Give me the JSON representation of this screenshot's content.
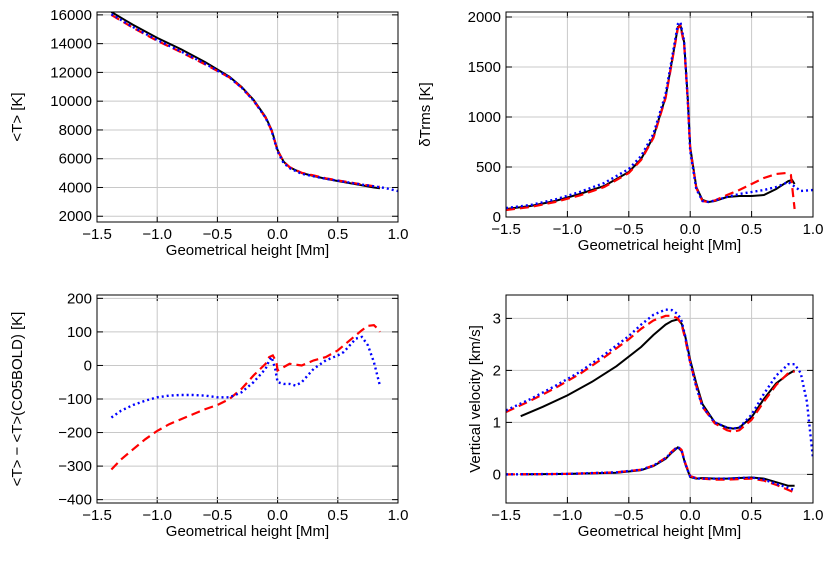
{
  "chart_data": [
    {
      "id": "p1",
      "type": "line",
      "xlabel": "Geometrical height [Mm]",
      "ylabel": "<T> [K]",
      "xlim": [
        -1.5,
        1.0
      ],
      "ylim": [
        1600,
        16200
      ],
      "xticks": [
        -1.5,
        -1.0,
        -0.5,
        0.0,
        0.5,
        1.0
      ],
      "xtick_labels": [
        "−1.5",
        "−1.0",
        "−0.5",
        "0.0",
        "0.5",
        "1.0"
      ],
      "yticks": [
        2000,
        4000,
        6000,
        8000,
        10000,
        12000,
        14000,
        16000
      ],
      "ytick_labels": [
        "2000",
        "4000",
        "6000",
        "8000",
        "10000",
        "12000",
        "14000",
        "16000"
      ],
      "series": [
        {
          "name": "black",
          "color": "#000000",
          "x": [
            -1.38,
            -1.2,
            -1.0,
            -0.8,
            -0.6,
            -0.4,
            -0.3,
            -0.2,
            -0.1,
            -0.05,
            0.0,
            0.05,
            0.1,
            0.2,
            0.3,
            0.4,
            0.5,
            0.6,
            0.7,
            0.8,
            0.85
          ],
          "y": [
            16200,
            15300,
            14400,
            13600,
            12700,
            11700,
            11000,
            10100,
            8900,
            8000,
            6600,
            5800,
            5400,
            5000,
            4800,
            4600,
            4450,
            4300,
            4150,
            4000,
            3950
          ]
        },
        {
          "name": "red",
          "color": "#ff0000",
          "x": [
            -1.38,
            -1.2,
            -1.0,
            -0.8,
            -0.6,
            -0.4,
            -0.3,
            -0.2,
            -0.1,
            -0.05,
            0.0,
            0.05,
            0.1,
            0.2,
            0.3,
            0.4,
            0.5,
            0.6,
            0.7,
            0.8,
            0.85
          ],
          "y": [
            16000,
            15100,
            14200,
            13400,
            12550,
            11650,
            10950,
            10050,
            8850,
            7950,
            6550,
            5800,
            5420,
            5020,
            4830,
            4640,
            4490,
            4350,
            4210,
            4090,
            4050
          ]
        },
        {
          "name": "blue",
          "color": "#0000ff",
          "x": [
            -1.38,
            -1.2,
            -1.0,
            -0.8,
            -0.6,
            -0.4,
            -0.3,
            -0.2,
            -0.1,
            -0.05,
            0.0,
            0.05,
            0.1,
            0.2,
            0.3,
            0.4,
            0.5,
            0.6,
            0.7,
            0.8,
            0.9,
            1.0
          ],
          "y": [
            16050,
            15150,
            14250,
            13450,
            12600,
            11650,
            10950,
            10050,
            8850,
            7950,
            6500,
            5700,
            5350,
            4950,
            4780,
            4600,
            4470,
            4330,
            4200,
            4080,
            3950,
            3750
          ]
        }
      ]
    },
    {
      "id": "p2",
      "type": "line",
      "xlabel": "Geometrical height [Mm]",
      "ylabel": "δTrms [K]",
      "xlim": [
        -1.5,
        1.0
      ],
      "ylim": [
        0,
        2050
      ],
      "xticks": [
        -1.5,
        -1.0,
        -0.5,
        0.0,
        0.5,
        1.0
      ],
      "xtick_labels": [
        "−1.5",
        "−1.0",
        "−0.5",
        "0.0",
        "0.5",
        "1.0"
      ],
      "yticks": [
        0,
        500,
        1000,
        1500,
        2000
      ],
      "ytick_labels": [
        "0",
        "500",
        "1000",
        "1500",
        "2000"
      ],
      "series": [
        {
          "name": "black",
          "color": "#000000",
          "x": [
            -1.5,
            -1.3,
            -1.1,
            -0.9,
            -0.7,
            -0.5,
            -0.4,
            -0.3,
            -0.2,
            -0.15,
            -0.1,
            -0.08,
            -0.05,
            -0.02,
            0.0,
            0.05,
            0.1,
            0.15,
            0.2,
            0.3,
            0.4,
            0.5,
            0.6,
            0.7,
            0.8,
            0.83,
            0.85
          ],
          "y": [
            80,
            110,
            160,
            230,
            310,
            450,
            580,
            800,
            1200,
            1550,
            1900,
            1920,
            1750,
            1200,
            700,
            300,
            170,
            150,
            160,
            200,
            210,
            210,
            220,
            280,
            360,
            370,
            330
          ]
        },
        {
          "name": "red",
          "color": "#ff0000",
          "x": [
            -1.5,
            -1.3,
            -1.1,
            -0.9,
            -0.7,
            -0.5,
            -0.4,
            -0.3,
            -0.2,
            -0.15,
            -0.1,
            -0.08,
            -0.05,
            -0.02,
            0.0,
            0.05,
            0.1,
            0.15,
            0.2,
            0.3,
            0.4,
            0.5,
            0.6,
            0.7,
            0.78,
            0.82,
            0.85
          ],
          "y": [
            70,
            100,
            150,
            215,
            300,
            440,
            570,
            790,
            1190,
            1540,
            1890,
            1910,
            1730,
            1180,
            680,
            290,
            160,
            150,
            165,
            220,
            270,
            330,
            390,
            430,
            440,
            420,
            80
          ]
        },
        {
          "name": "blue",
          "color": "#0000ff",
          "x": [
            -1.5,
            -1.3,
            -1.1,
            -0.9,
            -0.7,
            -0.5,
            -0.4,
            -0.3,
            -0.2,
            -0.15,
            -0.1,
            -0.08,
            -0.05,
            -0.02,
            0.0,
            0.05,
            0.1,
            0.15,
            0.2,
            0.3,
            0.4,
            0.5,
            0.6,
            0.7,
            0.8,
            0.9,
            1.0
          ],
          "y": [
            90,
            120,
            175,
            250,
            340,
            480,
            610,
            830,
            1230,
            1580,
            1930,
            1950,
            1760,
            1180,
            660,
            280,
            160,
            150,
            165,
            200,
            230,
            250,
            270,
            300,
            350,
            260,
            270
          ]
        }
      ]
    },
    {
      "id": "p3",
      "type": "line",
      "xlabel": "Geometrical height [Mm]",
      "ylabel": "<T> − <T>(CO5BOLD) [K]",
      "xlim": [
        -1.5,
        1.0
      ],
      "ylim": [
        -410,
        210
      ],
      "xticks": [
        -1.5,
        -1.0,
        -0.5,
        0.0,
        0.5,
        1.0
      ],
      "xtick_labels": [
        "−1.5",
        "−1.0",
        "−0.5",
        "0.0",
        "0.5",
        "1.0"
      ],
      "yticks": [
        -400,
        -300,
        -200,
        -100,
        0,
        100,
        200
      ],
      "ytick_labels": [
        "−400",
        "−300",
        "−200",
        "−100",
        "0",
        "100",
        "200"
      ],
      "series": [
        {
          "name": "red",
          "color": "#ff0000",
          "x": [
            -1.38,
            -1.3,
            -1.2,
            -1.1,
            -1.0,
            -0.9,
            -0.8,
            -0.7,
            -0.6,
            -0.5,
            -0.4,
            -0.3,
            -0.2,
            -0.1,
            -0.07,
            -0.04,
            -0.01,
            0.0,
            0.1,
            0.2,
            0.3,
            0.4,
            0.5,
            0.6,
            0.7,
            0.75,
            0.8,
            0.83,
            0.85
          ],
          "y": [
            -310,
            -280,
            -250,
            -220,
            -195,
            -175,
            -160,
            -145,
            -130,
            -118,
            -100,
            -70,
            -30,
            5,
            25,
            30,
            10,
            -15,
            5,
            0,
            15,
            25,
            45,
            75,
            105,
            118,
            120,
            110,
            100
          ]
        },
        {
          "name": "blue",
          "color": "#0000ff",
          "x": [
            -1.38,
            -1.3,
            -1.2,
            -1.1,
            -1.0,
            -0.9,
            -0.8,
            -0.7,
            -0.6,
            -0.5,
            -0.4,
            -0.3,
            -0.2,
            -0.1,
            -0.07,
            -0.05,
            -0.02,
            0.0,
            0.05,
            0.1,
            0.15,
            0.2,
            0.3,
            0.4,
            0.5,
            0.55,
            0.6,
            0.65,
            0.7,
            0.75,
            0.8,
            0.85
          ],
          "y": [
            -155,
            -135,
            -118,
            -105,
            -95,
            -90,
            -88,
            -88,
            -90,
            -95,
            -95,
            -80,
            -50,
            -10,
            15,
            25,
            -10,
            -50,
            -55,
            -55,
            -60,
            -50,
            -10,
            15,
            30,
            40,
            60,
            80,
            85,
            60,
            10,
            -60
          ]
        }
      ]
    },
    {
      "id": "p4",
      "type": "line",
      "xlabel": "Geometrical height [Mm]",
      "ylabel": "Vertical velocity [km/s]",
      "xlim": [
        -1.5,
        1.0
      ],
      "ylim": [
        -0.55,
        3.45
      ],
      "xticks": [
        -1.5,
        -1.0,
        -0.5,
        0.0,
        0.5,
        1.0
      ],
      "xtick_labels": [
        "−1.5",
        "−1.0",
        "−0.5",
        "0.0",
        "0.5",
        "1.0"
      ],
      "yticks": [
        0,
        1,
        2,
        3
      ],
      "ytick_labels": [
        "0",
        "1",
        "2",
        "3"
      ],
      "series": [
        {
          "name": "black-upper",
          "color": "#000000",
          "x": [
            -1.38,
            -1.2,
            -1.0,
            -0.8,
            -0.6,
            -0.4,
            -0.3,
            -0.2,
            -0.15,
            -0.1,
            -0.07,
            -0.04,
            0.0,
            0.05,
            0.1,
            0.2,
            0.3,
            0.35,
            0.4,
            0.5,
            0.6,
            0.7,
            0.8,
            0.85
          ],
          "y": [
            1.12,
            1.3,
            1.52,
            1.78,
            2.08,
            2.45,
            2.68,
            2.88,
            2.95,
            2.98,
            2.9,
            2.65,
            2.2,
            1.75,
            1.35,
            1.0,
            0.9,
            0.88,
            0.9,
            1.1,
            1.45,
            1.75,
            1.93,
            2.0
          ]
        },
        {
          "name": "red-upper",
          "color": "#ff0000",
          "x": [
            -1.5,
            -1.3,
            -1.1,
            -0.9,
            -0.7,
            -0.5,
            -0.4,
            -0.3,
            -0.2,
            -0.15,
            -0.1,
            -0.07,
            -0.04,
            0.0,
            0.05,
            0.1,
            0.2,
            0.3,
            0.35,
            0.4,
            0.5,
            0.6,
            0.7,
            0.8,
            0.85
          ],
          "y": [
            1.2,
            1.42,
            1.66,
            1.93,
            2.25,
            2.6,
            2.8,
            2.96,
            3.05,
            3.05,
            3.0,
            2.88,
            2.6,
            2.15,
            1.7,
            1.3,
            0.98,
            0.85,
            0.82,
            0.85,
            1.05,
            1.4,
            1.72,
            1.95,
            1.98
          ]
        },
        {
          "name": "blue-upper",
          "color": "#0000ff",
          "x": [
            -1.5,
            -1.3,
            -1.1,
            -0.9,
            -0.7,
            -0.5,
            -0.4,
            -0.3,
            -0.2,
            -0.15,
            -0.1,
            -0.07,
            -0.04,
            0.0,
            0.05,
            0.1,
            0.2,
            0.3,
            0.35,
            0.4,
            0.5,
            0.6,
            0.7,
            0.8,
            0.85,
            0.9,
            0.95,
            1.0
          ],
          "y": [
            1.23,
            1.45,
            1.7,
            1.97,
            2.3,
            2.66,
            2.88,
            3.07,
            3.17,
            3.16,
            3.08,
            2.95,
            2.65,
            2.15,
            1.68,
            1.3,
            1.0,
            0.9,
            0.88,
            0.9,
            1.15,
            1.55,
            1.9,
            2.12,
            2.12,
            1.95,
            1.4,
            0.3
          ]
        },
        {
          "name": "black-lower",
          "color": "#000000",
          "x": [
            -1.38,
            -1.0,
            -0.6,
            -0.4,
            -0.3,
            -0.2,
            -0.15,
            -0.1,
            -0.07,
            -0.04,
            0.0,
            0.05,
            0.1,
            0.2,
            0.3,
            0.4,
            0.5,
            0.6,
            0.7,
            0.8,
            0.85
          ],
          "y": [
            0.0,
            0.01,
            0.03,
            0.08,
            0.16,
            0.3,
            0.42,
            0.52,
            0.45,
            0.2,
            -0.05,
            -0.08,
            -0.07,
            -0.08,
            -0.08,
            -0.07,
            -0.06,
            -0.08,
            -0.15,
            -0.22,
            -0.22
          ]
        },
        {
          "name": "red-lower",
          "color": "#ff0000",
          "x": [
            -1.5,
            -1.0,
            -0.6,
            -0.4,
            -0.3,
            -0.2,
            -0.15,
            -0.1,
            -0.07,
            -0.04,
            0.0,
            0.05,
            0.1,
            0.2,
            0.3,
            0.4,
            0.5,
            0.6,
            0.7,
            0.8,
            0.85
          ],
          "y": [
            0.0,
            0.01,
            0.04,
            0.09,
            0.17,
            0.32,
            0.44,
            0.54,
            0.47,
            0.22,
            -0.03,
            -0.07,
            -0.08,
            -0.1,
            -0.1,
            -0.09,
            -0.08,
            -0.12,
            -0.2,
            -0.3,
            -0.35
          ]
        },
        {
          "name": "blue-lower",
          "color": "#0000ff",
          "x": [
            -1.5,
            -1.0,
            -0.6,
            -0.4,
            -0.3,
            -0.2,
            -0.15,
            -0.1,
            -0.07,
            -0.04,
            0.0,
            0.05,
            0.1,
            0.2,
            0.3,
            0.4,
            0.5,
            0.6,
            0.7,
            0.8,
            0.85
          ],
          "y": [
            0.0,
            0.01,
            0.04,
            0.09,
            0.17,
            0.31,
            0.43,
            0.53,
            0.46,
            0.2,
            -0.04,
            -0.08,
            -0.08,
            -0.08,
            -0.08,
            -0.07,
            -0.06,
            -0.1,
            -0.18,
            -0.26,
            -0.3
          ]
        }
      ]
    }
  ]
}
